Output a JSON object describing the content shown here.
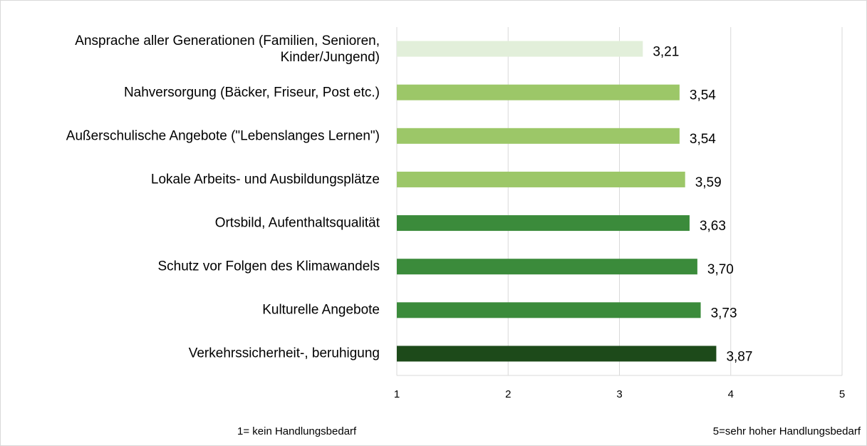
{
  "chart_data": {
    "type": "bar",
    "orientation": "horizontal",
    "categories": [
      "Ansprache aller Generationen (Familien, Senioren, Kinder/Jungend)",
      "Nahversorgung (Bäcker, Friseur, Post etc.)",
      "Außerschulische Angebote (\"Lebenslanges Lernen\")",
      "Lokale Arbeits- und Ausbildungsplätze",
      "Ortsbild, Aufenthaltsqualität",
      "Schutz vor Folgen des Klimawandels",
      "Kulturelle Angebote",
      "Verkehrssicherheit-, beruhigung"
    ],
    "values": [
      3.21,
      3.54,
      3.54,
      3.59,
      3.63,
      3.7,
      3.73,
      3.87
    ],
    "value_labels": [
      "3,21",
      "3,54",
      "3,54",
      "3,59",
      "3,63",
      "3,70",
      "3,73",
      "3,87"
    ],
    "colors": [
      "#e2efda",
      "#9cc768",
      "#9cc768",
      "#9cc768",
      "#3b8b3b",
      "#3b8b3b",
      "#3b8b3b",
      "#1d4a1a"
    ],
    "xlim": [
      1,
      5
    ],
    "xticks": [
      1,
      2,
      3,
      4,
      5
    ],
    "grid": true,
    "footnote_left": "1= kein Handlungsbedarf",
    "footnote_right": "5=sehr hoher Handlungsbedarf"
  }
}
